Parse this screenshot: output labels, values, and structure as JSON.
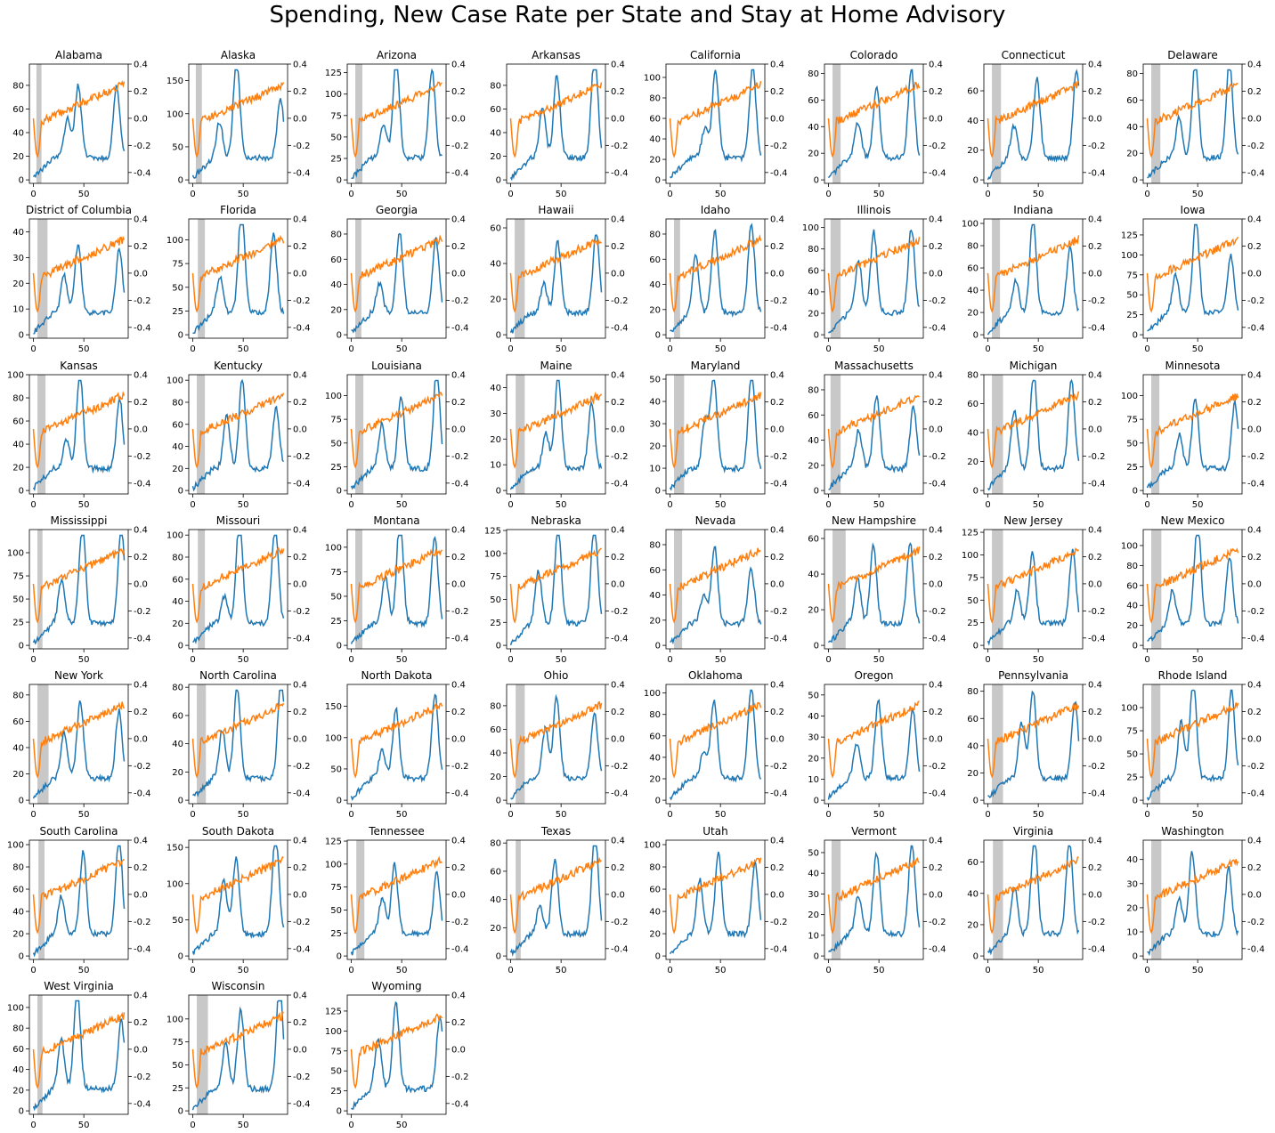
{
  "title": "Spending, New Case Rate per State and Stay at Home Advisory",
  "chart_data": {
    "type": "line",
    "x_ticks": [
      0,
      50
    ],
    "xlim": [
      -4,
      94
    ],
    "right_axis": {
      "ylim": [
        -0.48,
        0.4
      ],
      "ticks": [
        "0.4",
        "0.2",
        "0.0",
        "-0.2",
        "-0.4"
      ],
      "values": [
        0.4,
        0.2,
        0.0,
        -0.2,
        -0.4
      ]
    },
    "series_colors": {
      "new_case_rate": "#1f77b4",
      "spending": "#ff7f0e",
      "stay_at_home": "#c8c8c8"
    },
    "states": [
      {
        "name": "Alabama",
        "left_ticks": [
          0,
          20,
          40,
          60,
          80
        ],
        "ymax": 98,
        "home": [
          3,
          8
        ]
      },
      {
        "name": "Alaska",
        "left_ticks": [
          0,
          50,
          100,
          150
        ],
        "ymax": 175,
        "home": [
          3,
          9
        ]
      },
      {
        "name": "Arizona",
        "left_ticks": [
          0,
          25,
          50,
          75,
          100,
          125
        ],
        "ymax": 135,
        "home": [
          4,
          11
        ]
      },
      {
        "name": "Arkansas",
        "left_ticks": [
          0,
          20,
          40,
          60,
          80
        ],
        "ymax": 98,
        "home": null
      },
      {
        "name": "California",
        "left_ticks": [
          0,
          20,
          40,
          60,
          80,
          100
        ],
        "ymax": 113,
        "home": null
      },
      {
        "name": "Colorado",
        "left_ticks": [
          0,
          20,
          40,
          60,
          80
        ],
        "ymax": 87,
        "home": [
          4,
          12
        ]
      },
      {
        "name": "Connecticut",
        "left_ticks": [
          0,
          20,
          40,
          60
        ],
        "ymax": 78,
        "home": [
          4,
          13
        ]
      },
      {
        "name": "Delaware",
        "left_ticks": [
          0,
          20,
          40,
          60,
          80
        ],
        "ymax": 87,
        "home": [
          4,
          13
        ]
      },
      {
        "name": "District of Columbia",
        "left_ticks": [
          0,
          10,
          20,
          30,
          40
        ],
        "ymax": 45,
        "home": [
          4,
          14
        ]
      },
      {
        "name": "Florida",
        "left_ticks": [
          0,
          25,
          50,
          75,
          100
        ],
        "ymax": 122,
        "home": [
          5,
          12
        ]
      },
      {
        "name": "Georgia",
        "left_ticks": [
          0,
          20,
          40,
          60,
          80
        ],
        "ymax": 92,
        "home": [
          4,
          10
        ]
      },
      {
        "name": "Hawaii",
        "left_ticks": [
          0,
          20,
          40,
          60
        ],
        "ymax": 65,
        "home": [
          4,
          14
        ]
      },
      {
        "name": "Idaho",
        "left_ticks": [
          0,
          20,
          40,
          60,
          80
        ],
        "ymax": 92,
        "home": [
          4,
          10
        ]
      },
      {
        "name": "Illinois",
        "left_ticks": [
          0,
          20,
          40,
          60,
          80,
          100
        ],
        "ymax": 108,
        "home": [
          2,
          12
        ]
      },
      {
        "name": "Indiana",
        "left_ticks": [
          0,
          20,
          40,
          60,
          80,
          100
        ],
        "ymax": 104,
        "home": [
          4,
          12
        ]
      },
      {
        "name": "Iowa",
        "left_ticks": [
          0,
          25,
          50,
          75,
          100,
          125
        ],
        "ymax": 145,
        "home": null
      },
      {
        "name": "Kansas",
        "left_ticks": [
          0,
          20,
          40,
          60,
          80,
          100
        ],
        "ymax": 100,
        "home": [
          4,
          12
        ]
      },
      {
        "name": "Kentucky",
        "left_ticks": [
          0,
          20,
          40,
          60,
          80,
          100
        ],
        "ymax": 105,
        "home": [
          4,
          12
        ]
      },
      {
        "name": "Louisiana",
        "left_ticks": [
          0,
          25,
          50,
          75,
          100
        ],
        "ymax": 122,
        "home": [
          4,
          12
        ]
      },
      {
        "name": "Maine",
        "left_ticks": [
          0,
          10,
          20,
          30,
          40
        ],
        "ymax": 45,
        "home": [
          5,
          14
        ]
      },
      {
        "name": "Maryland",
        "left_ticks": [
          0,
          10,
          20,
          30,
          40,
          50
        ],
        "ymax": 52,
        "home": [
          4,
          14
        ]
      },
      {
        "name": "Massachusetts",
        "left_ticks": [
          0,
          20,
          40,
          60,
          80
        ],
        "ymax": 92,
        "home": [
          2,
          12
        ]
      },
      {
        "name": "Michigan",
        "left_ticks": [
          0,
          20,
          40,
          60,
          80
        ],
        "ymax": 80,
        "home": [
          4,
          15
        ]
      },
      {
        "name": "Minnesota",
        "left_ticks": [
          0,
          25,
          50,
          75,
          100
        ],
        "ymax": 122,
        "home": [
          4,
          12
        ]
      },
      {
        "name": "Mississippi",
        "left_ticks": [
          0,
          25,
          50,
          75,
          100
        ],
        "ymax": 125,
        "home": [
          4,
          9
        ]
      },
      {
        "name": "Missouri",
        "left_ticks": [
          0,
          20,
          40,
          60,
          80,
          100
        ],
        "ymax": 105,
        "home": [
          5,
          12
        ]
      },
      {
        "name": "Montana",
        "left_ticks": [
          0,
          25,
          50,
          75,
          100
        ],
        "ymax": 118,
        "home": [
          4,
          11
        ]
      },
      {
        "name": "Nebraska",
        "left_ticks": [
          0,
          25,
          50,
          75,
          100,
          125
        ],
        "ymax": 126,
        "home": null
      },
      {
        "name": "Nevada",
        "left_ticks": [
          0,
          20,
          40,
          60,
          80
        ],
        "ymax": 92,
        "home": [
          4,
          12
        ]
      },
      {
        "name": "New Hampshire",
        "left_ticks": [
          0,
          20,
          40,
          60
        ],
        "ymax": 65,
        "home": [
          4,
          17
        ]
      },
      {
        "name": "New Jersey",
        "left_ticks": [
          0,
          25,
          50,
          75,
          100,
          125
        ],
        "ymax": 128,
        "home": [
          4,
          15
        ]
      },
      {
        "name": "New Mexico",
        "left_ticks": [
          0,
          20,
          40,
          60,
          80,
          100
        ],
        "ymax": 116,
        "home": [
          4,
          14
        ]
      },
      {
        "name": "New York",
        "left_ticks": [
          0,
          20,
          40,
          60,
          80
        ],
        "ymax": 88,
        "home": [
          4,
          15
        ]
      },
      {
        "name": "North Carolina",
        "left_ticks": [
          0,
          20,
          40,
          60,
          80
        ],
        "ymax": 82,
        "home": [
          4,
          13
        ]
      },
      {
        "name": "North Dakota",
        "left_ticks": [
          0,
          50,
          100,
          150
        ],
        "ymax": 185,
        "home": null
      },
      {
        "name": "Ohio",
        "left_ticks": [
          0,
          20,
          40,
          60,
          80
        ],
        "ymax": 98,
        "home": [
          5,
          14
        ]
      },
      {
        "name": "Oklahoma",
        "left_ticks": [
          0,
          20,
          40,
          60,
          80,
          100
        ],
        "ymax": 108,
        "home": null
      },
      {
        "name": "Oregon",
        "left_ticks": [
          0,
          10,
          20,
          30,
          40,
          50
        ],
        "ymax": 55,
        "home": null
      },
      {
        "name": "Pennsylvania",
        "left_ticks": [
          0,
          20,
          40,
          60,
          80
        ],
        "ymax": 85,
        "home": [
          4,
          15
        ]
      },
      {
        "name": "Rhode Island",
        "left_ticks": [
          0,
          25,
          50,
          75,
          100
        ],
        "ymax": 125,
        "home": [
          4,
          13
        ]
      },
      {
        "name": "South Carolina",
        "left_ticks": [
          0,
          20,
          40,
          60,
          80,
          100
        ],
        "ymax": 104,
        "home": [
          5,
          11
        ]
      },
      {
        "name": "South Dakota",
        "left_ticks": [
          0,
          50,
          100,
          150
        ],
        "ymax": 160,
        "home": null
      },
      {
        "name": "Tennessee",
        "left_ticks": [
          0,
          25,
          50,
          75,
          100,
          125
        ],
        "ymax": 126,
        "home": [
          5,
          13
        ]
      },
      {
        "name": "Texas",
        "left_ticks": [
          0,
          20,
          40,
          60,
          80
        ],
        "ymax": 82,
        "home": [
          5,
          10
        ]
      },
      {
        "name": "Utah",
        "left_ticks": [
          0,
          20,
          40,
          60,
          80,
          100
        ],
        "ymax": 104,
        "home": null
      },
      {
        "name": "Vermont",
        "left_ticks": [
          0,
          10,
          20,
          30,
          40,
          50
        ],
        "ymax": 56,
        "home": [
          3,
          12
        ]
      },
      {
        "name": "Virginia",
        "left_ticks": [
          0,
          20,
          40,
          60
        ],
        "ymax": 74,
        "home": [
          5,
          15
        ]
      },
      {
        "name": "Washington",
        "left_ticks": [
          0,
          10,
          20,
          30,
          40
        ],
        "ymax": 48,
        "home": [
          4,
          14
        ]
      },
      {
        "name": "West Virginia",
        "left_ticks": [
          0,
          20,
          40,
          60,
          80,
          100
        ],
        "ymax": 112,
        "home": [
          4,
          9
        ]
      },
      {
        "name": "Wisconsin",
        "left_ticks": [
          0,
          25,
          50,
          75,
          100
        ],
        "ymax": 126,
        "home": [
          4,
          15
        ]
      },
      {
        "name": "Wyoming",
        "left_ticks": [
          0,
          25,
          50,
          75,
          100,
          125
        ],
        "ymax": 145,
        "home": null
      }
    ]
  }
}
